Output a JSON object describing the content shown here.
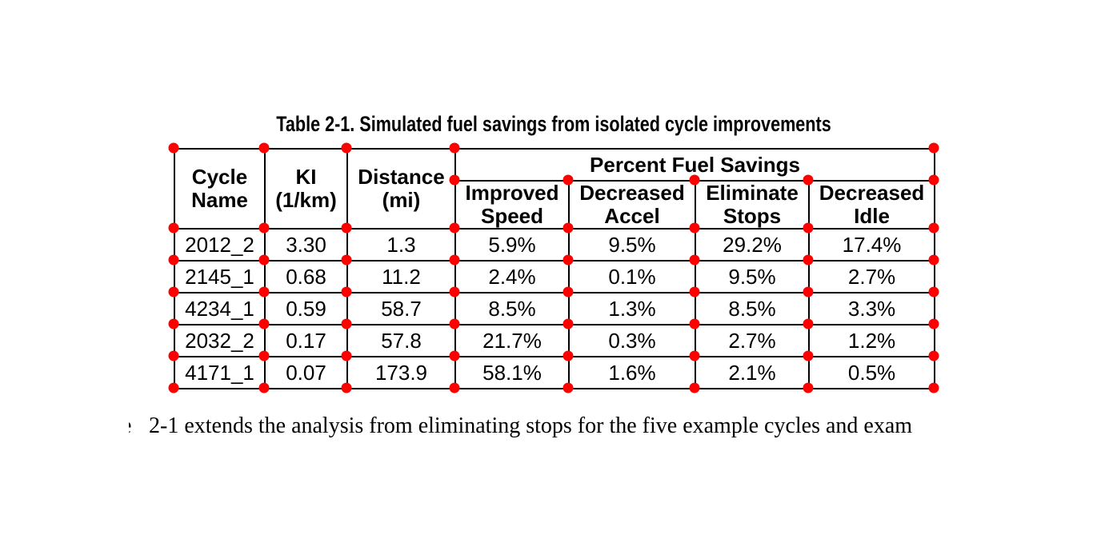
{
  "title": "Table 2-1. Simulated fuel savings from isolated cycle improvements",
  "table": {
    "header": {
      "cycle_name": [
        "Cycle",
        "Name"
      ],
      "ki": [
        "KI",
        "(1/km)"
      ],
      "distance": [
        "Distance",
        "(mi)"
      ],
      "group": "Percent Fuel Savings",
      "improved_speed": [
        "Improved",
        "Speed"
      ],
      "decreased_accel": [
        "Decreased",
        "Accel"
      ],
      "eliminate_stops": [
        "Eliminate",
        "Stops"
      ],
      "decreased_idle": [
        "Decreased",
        "Idle"
      ]
    },
    "rows": [
      [
        "2012_2",
        "3.30",
        "1.3",
        "5.9%",
        "9.5%",
        "29.2%",
        "17.4%"
      ],
      [
        "2145_1",
        "0.68",
        "11.2",
        "2.4%",
        "0.1%",
        "9.5%",
        "2.7%"
      ],
      [
        "4234_1",
        "0.59",
        "58.7",
        "8.5%",
        "1.3%",
        "8.5%",
        "3.3%"
      ],
      [
        "2032_2",
        "0.17",
        "57.8",
        "21.7%",
        "0.3%",
        "2.7%",
        "1.2%"
      ],
      [
        "4171_1",
        "0.07",
        "173.9",
        "58.1%",
        "1.6%",
        "2.1%",
        "0.5%"
      ]
    ]
  },
  "chart_data": {
    "type": "table",
    "title": "Table 2-1. Simulated fuel savings from isolated cycle improvements",
    "group_header": "Percent Fuel Savings",
    "columns": [
      "Cycle Name",
      "KI (1/km)",
      "Distance (mi)",
      "Improved Speed",
      "Decreased Accel",
      "Eliminate Stops",
      "Decreased Idle"
    ],
    "rows": [
      [
        "2012_2",
        3.3,
        1.3,
        "5.9%",
        "9.5%",
        "29.2%",
        "17.4%"
      ],
      [
        "2145_1",
        0.68,
        11.2,
        "2.4%",
        "0.1%",
        "9.5%",
        "2.7%"
      ],
      [
        "4234_1",
        0.59,
        58.7,
        "8.5%",
        "1.3%",
        "8.5%",
        "3.3%"
      ],
      [
        "2032_2",
        0.17,
        57.8,
        "21.7%",
        "0.3%",
        "2.7%",
        "1.2%"
      ],
      [
        "4171_1",
        0.07,
        173.9,
        "58.1%",
        "1.6%",
        "2.1%",
        "0.5%"
      ]
    ]
  },
  "body_text": {
    "clipped_prefix": "e",
    "visible": "2-1 extends the analysis from eliminating stops for the five example cycles and exam"
  },
  "annotations": {
    "marker_color": "#ff0000"
  }
}
